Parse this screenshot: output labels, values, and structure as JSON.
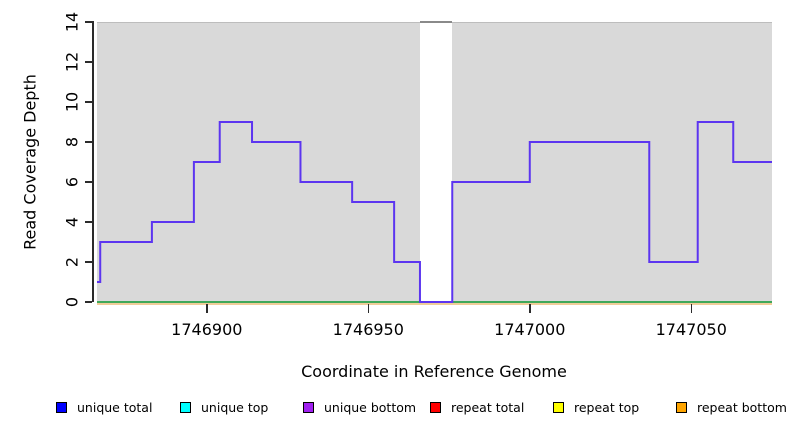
{
  "axes": {
    "y_title": "Read Coverage Depth",
    "x_title": "Coordinate in Reference Genome"
  },
  "chart_data": {
    "type": "line",
    "subtype": "step-coverage",
    "title": "",
    "xlabel": "Coordinate in Reference Genome",
    "ylabel": "Read Coverage Depth",
    "xlim": [
      1746866,
      1747075
    ],
    "ylim": [
      0,
      14
    ],
    "xticks": [
      1746900,
      1746950,
      1747000,
      1747050
    ],
    "yticks": [
      0,
      2,
      4,
      6,
      8,
      10,
      12,
      14
    ],
    "grid": false,
    "legend_position": "bottom",
    "coverage_steps": [
      {
        "x": 1746866,
        "depth": 1
      },
      {
        "x": 1746867,
        "depth": 3
      },
      {
        "x": 1746883,
        "depth": 4
      },
      {
        "x": 1746896,
        "depth": 7
      },
      {
        "x": 1746904,
        "depth": 9
      },
      {
        "x": 1746914,
        "depth": 8
      },
      {
        "x": 1746929,
        "depth": 6
      },
      {
        "x": 1746945,
        "depth": 5
      },
      {
        "x": 1746958,
        "depth": 2
      },
      {
        "x": 1746966,
        "depth": 0
      },
      {
        "x": 1746976,
        "depth": 6
      },
      {
        "x": 1747000,
        "depth": 8
      },
      {
        "x": 1747037,
        "depth": 2
      },
      {
        "x": 1747052,
        "depth": 9
      },
      {
        "x": 1747063,
        "depth": 7
      }
    ],
    "xend": 1747075,
    "zero_coverage_gap": {
      "start": 1746966,
      "end": 1746976
    },
    "colors": {
      "plot_background": "#d9d9d9",
      "step_line": "#5c35f0",
      "baseline_green": "#3fa85a",
      "baseline_tan": "#f0cd99",
      "axis": "#2b2b2b"
    }
  },
  "legend": {
    "items": [
      {
        "label": "unique total",
        "color": "#0000ff"
      },
      {
        "label": "unique top",
        "color": "#00ffff"
      },
      {
        "label": "unique bottom",
        "color": "#a020f0"
      },
      {
        "label": "repeat total",
        "color": "#ff0000"
      },
      {
        "label": "repeat top",
        "color": "#ffff00"
      },
      {
        "label": "repeat bottom",
        "color": "#ffa500"
      }
    ]
  }
}
